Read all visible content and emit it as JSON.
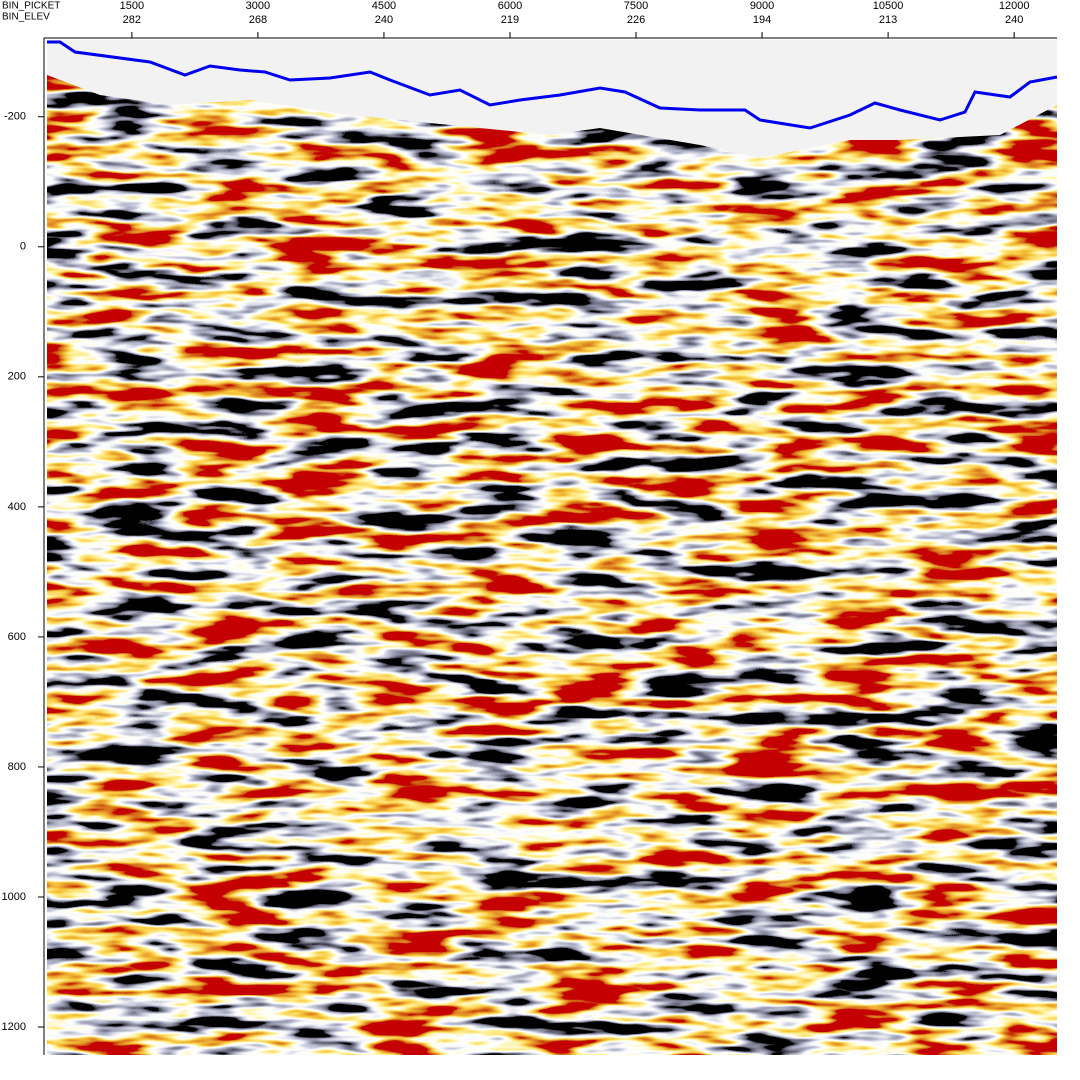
{
  "chart_data": {
    "type": "seismic",
    "x_row_labels": [
      "BIN_PICKET",
      "BIN_ELEV"
    ],
    "xlim": [
      490,
      12510
    ],
    "xticks": [
      1500,
      3000,
      4500,
      6000,
      7500,
      9000,
      10500,
      12000
    ],
    "elev_labels": [
      282,
      268,
      240,
      219,
      226,
      194,
      213,
      240
    ],
    "ylim": [
      -318,
      1243
    ],
    "yticks": [
      -200,
      0,
      200,
      400,
      600,
      800,
      1000,
      1200
    ]
  }
}
